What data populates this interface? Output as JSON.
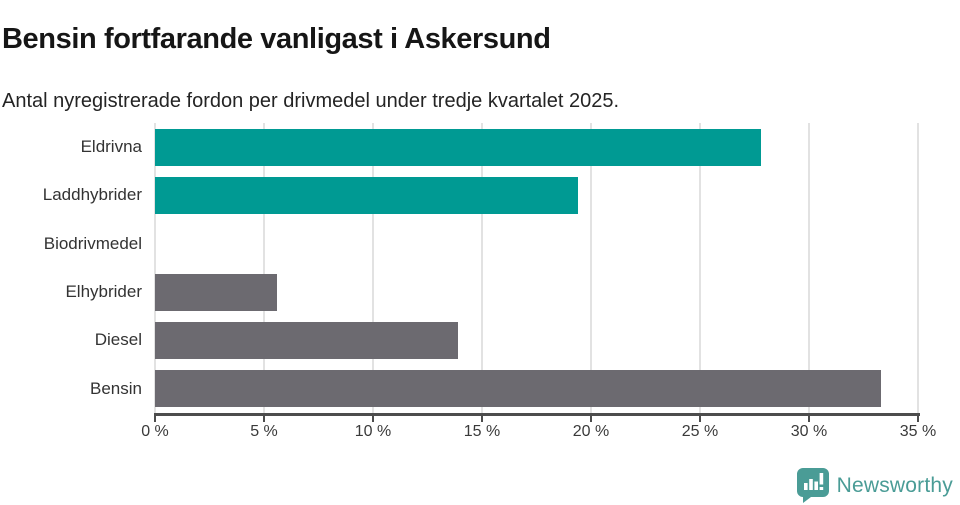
{
  "header": {
    "title": "Bensin fortfarande vanligast i Askersund",
    "subtitle": "Antal nyregistrerade fordon per drivmedel under tredje kvartalet 2025."
  },
  "chart_data": {
    "type": "bar",
    "orientation": "horizontal",
    "title": "Bensin fortfarande vanligast i Askersund",
    "subtitle": "Antal nyregistrerade fordon per drivmedel under tredje kvartalet 2025.",
    "categories": [
      "Eldrivna",
      "Laddhybrider",
      "Biodrivmedel",
      "Elhybrider",
      "Diesel",
      "Bensin"
    ],
    "values": [
      27.8,
      19.4,
      0,
      5.6,
      13.9,
      33.3
    ],
    "unit": "%",
    "xlim": [
      0,
      35
    ],
    "x_ticks": [
      0,
      5,
      10,
      15,
      20,
      25,
      30,
      35
    ],
    "x_tick_labels": [
      "0 %",
      "5 %",
      "10 %",
      "15 %",
      "20 %",
      "25 %",
      "30 %",
      "35 %"
    ],
    "bar_colors": [
      "#009a93",
      "#009a93",
      "#6c6a70",
      "#6c6a70",
      "#6c6a70",
      "#6c6a70"
    ],
    "highlight_color": "#009a93",
    "default_color": "#6c6a70",
    "grid": true,
    "gridline_color": "#e2e2e2",
    "axis_color": "#4d4d4d",
    "legend": "none"
  },
  "footer": {
    "brand": "Newsworthy",
    "brand_color": "#4a9c96"
  }
}
